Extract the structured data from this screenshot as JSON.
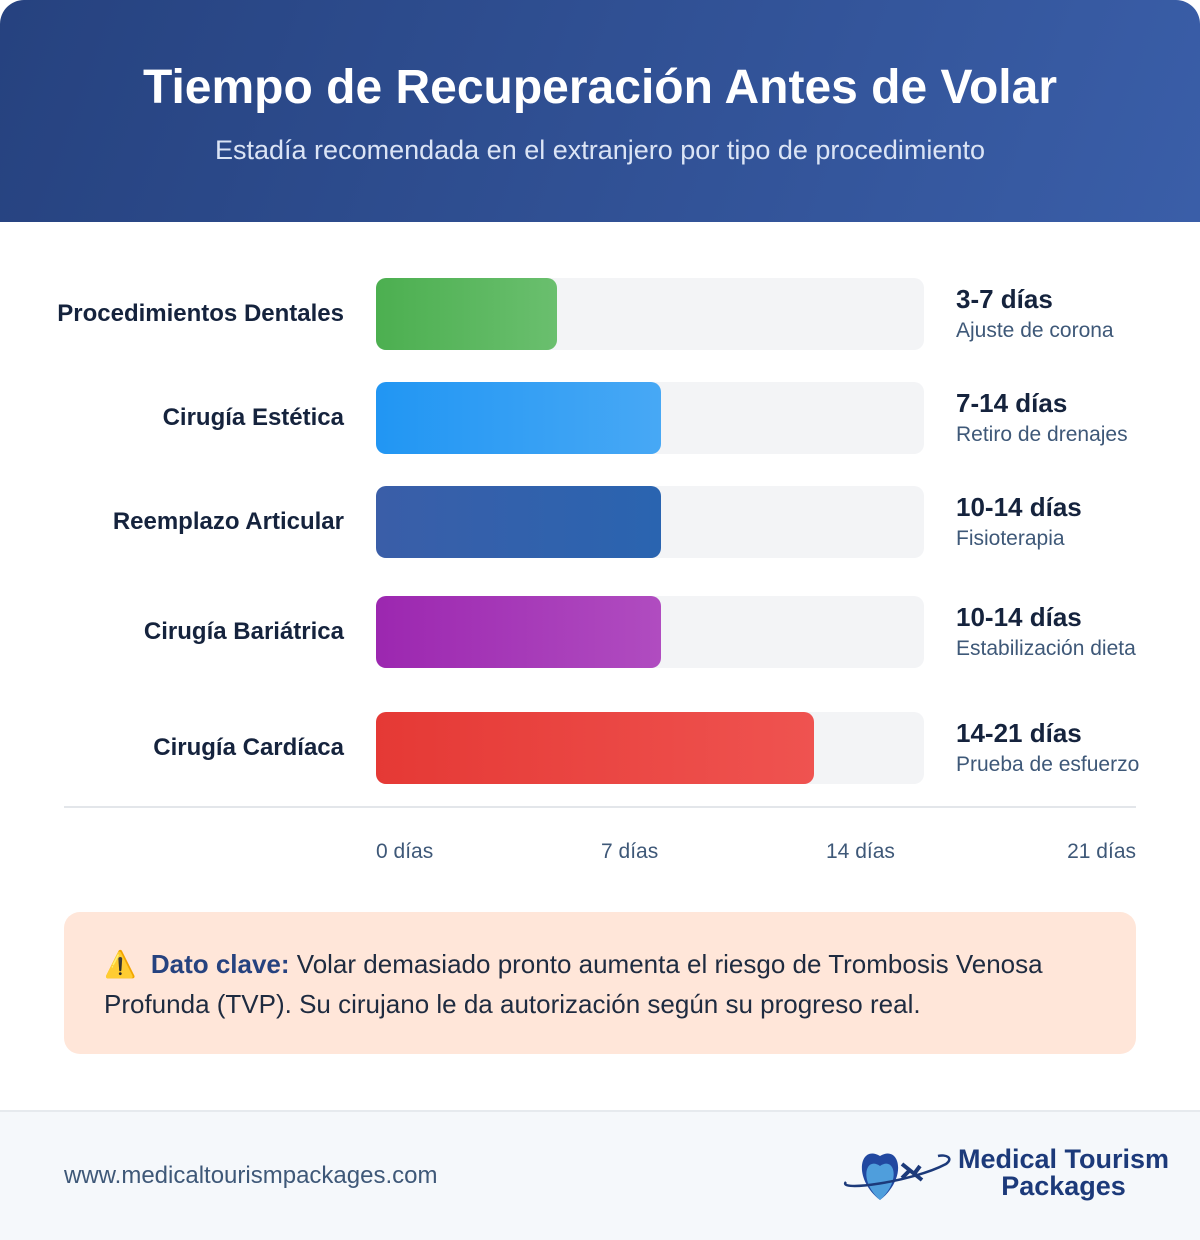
{
  "header": {
    "title": "Tiempo de Recuperación Antes de Volar",
    "subtitle": "Estadía recomendada en el extranjero por tipo de procedimiento"
  },
  "chart_data": {
    "type": "bar",
    "orientation": "horizontal",
    "categories": [
      "Procedimientos Dentales",
      "Cirugía Estética",
      "Reemplazo Articular",
      "Cirugía Bariátrica",
      "Cirugía Cardíaca"
    ],
    "series": [
      {
        "ranges": [
          "3-7 días",
          "7-14 días",
          "10-14 días",
          "10-14 días",
          "14-21 días"
        ],
        "notes": [
          "Ajuste de corona",
          "Retiro de drenajes",
          "Fisioterapia",
          "Estabilización dieta",
          "Prueba de esfuerzo"
        ],
        "fill_pct": [
          33,
          52,
          52,
          52,
          80
        ],
        "colors": [
          [
            "#4caf50",
            "#6abf6e"
          ],
          [
            "#2196f3",
            "#47a8f5"
          ],
          [
            "#3a5ea8",
            "#2a64b0"
          ],
          [
            "#9c27b0",
            "#b04cc0"
          ],
          [
            "#e53935",
            "#ef5350"
          ]
        ]
      }
    ],
    "x_ticks": [
      "0 días",
      "7 días",
      "14 días",
      "21 días"
    ]
  },
  "note": {
    "icon": "warning-icon",
    "glyph": "⚠️",
    "label": "Dato clave:",
    "text": " Volar demasiado pronto aumenta el riesgo de Trombosis Venosa Profunda (TVP). Su cirujano le da autorización según su progreso real."
  },
  "footer": {
    "url": "www.medicaltourismpackages.com",
    "logo_line1": "Medical Tourism",
    "logo_line2": "Packages"
  }
}
